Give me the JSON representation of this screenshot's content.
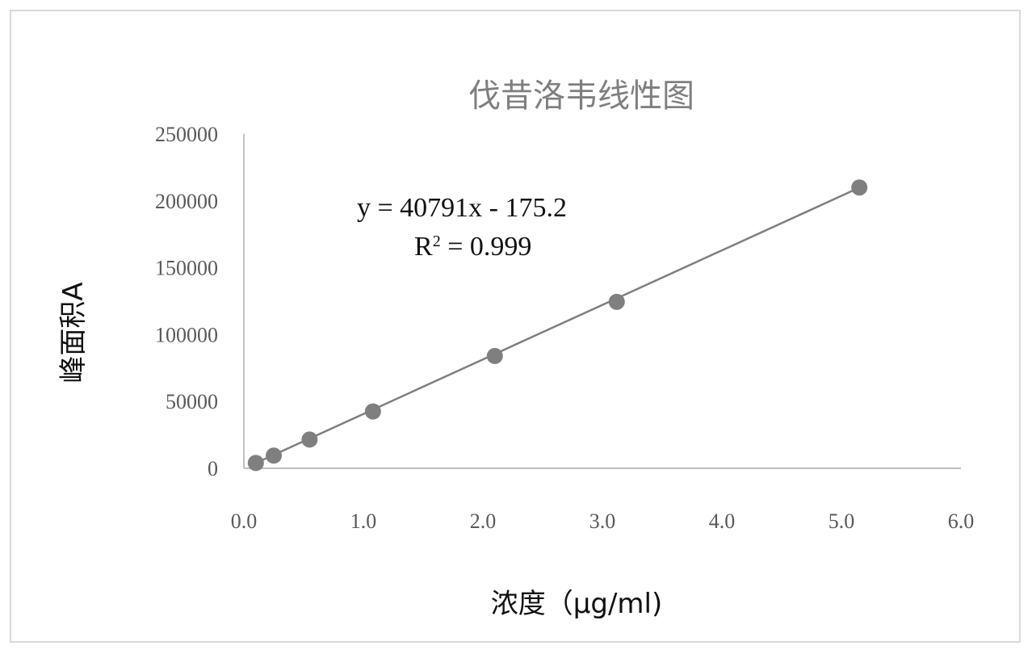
{
  "chart_data": {
    "type": "scatter",
    "title": "伐昔洛韦线性图",
    "xlabel": "浓度（μg/ml)",
    "ylabel": "峰面积A",
    "xlim": [
      0,
      6
    ],
    "ylim": [
      0,
      250000
    ],
    "x_ticks": [
      "0.0",
      "1.0",
      "2.0",
      "3.0",
      "4.0",
      "5.0",
      "6.0"
    ],
    "y_ticks": [
      "0",
      "50000",
      "100000",
      "150000",
      "200000",
      "250000"
    ],
    "series": [
      {
        "points": [
          {
            "x": 0.1,
            "y": 4000
          },
          {
            "x": 0.25,
            "y": 9500
          },
          {
            "x": 0.55,
            "y": 21500
          },
          {
            "x": 1.08,
            "y": 42500
          },
          {
            "x": 2.1,
            "y": 84000
          },
          {
            "x": 3.12,
            "y": 124500
          },
          {
            "x": 5.15,
            "y": 210000
          }
        ],
        "trendline": {
          "slope": 40791,
          "intercept": -175.2,
          "x_range": [
            0.1,
            5.15
          ]
        },
        "color": "#7f7f7f"
      }
    ],
    "annotations": {
      "equation": "y = 40791x - 175.2",
      "r2_prefix": "R",
      "r2_sup": "2",
      "r2_rest": " = 0.999"
    },
    "grid": false,
    "legend": "none"
  }
}
